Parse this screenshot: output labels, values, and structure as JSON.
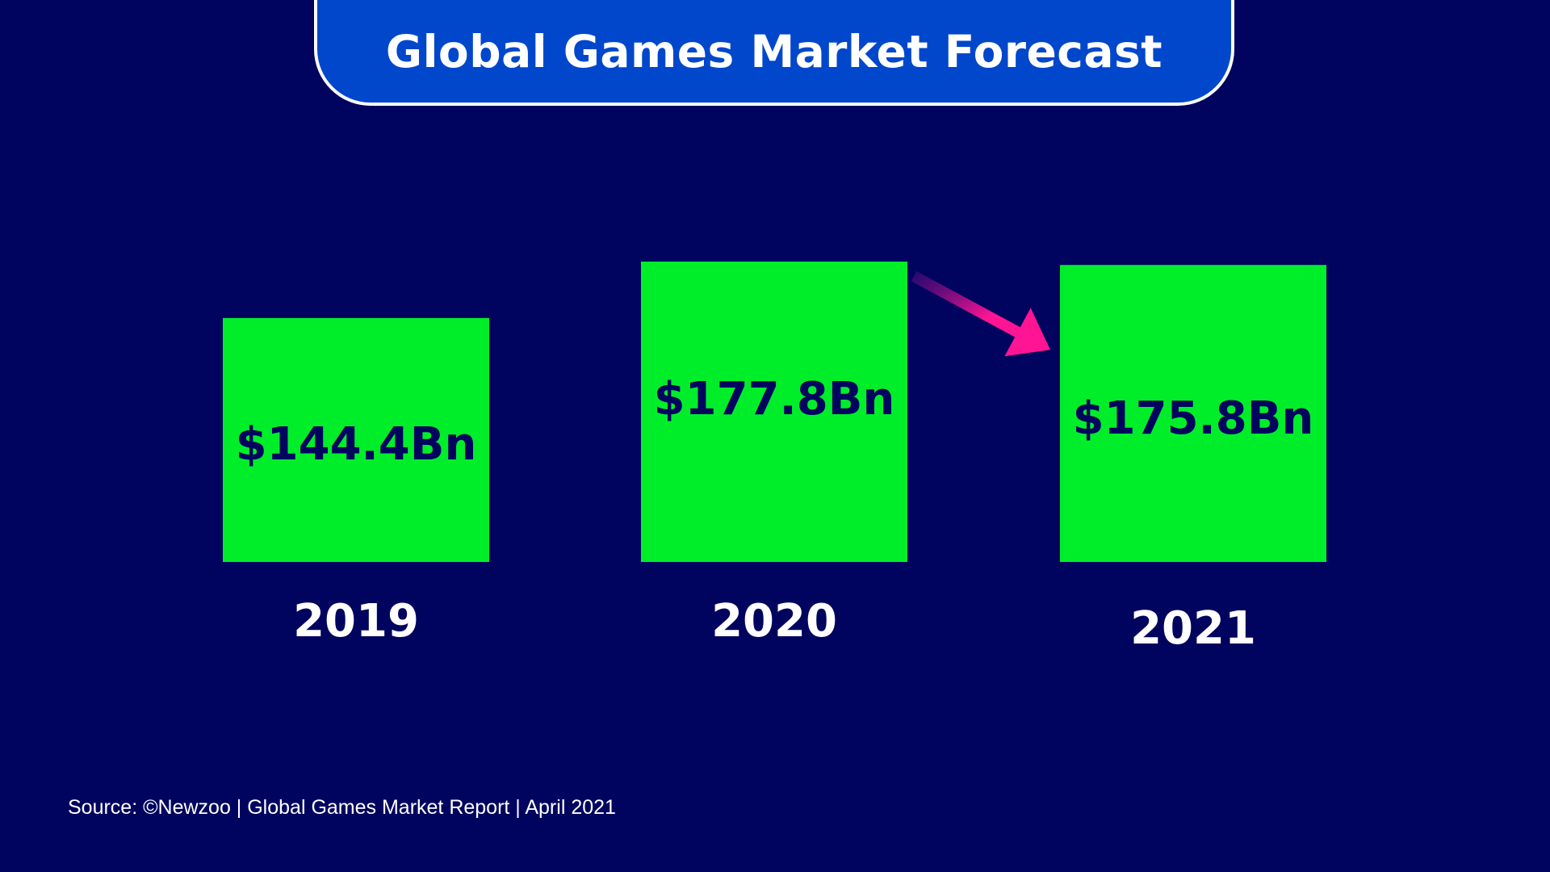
{
  "title": "Global Games Market Forecast",
  "source": "Source: ©Newzoo | Global Games Market Report | April 2021",
  "colors": {
    "background": "#00045e",
    "banner": "#0047cc",
    "bar": "#00ee2a",
    "bar_label": "#00045e",
    "axis_label": "#ffffff",
    "arrow": "#ff1493"
  },
  "arrow_icon": "trend-arrow-down-right",
  "chart_data": {
    "type": "bar",
    "categories": [
      "2019",
      "2020",
      "2021"
    ],
    "values": [
      144.4,
      177.8,
      175.8
    ],
    "data_labels": [
      "$144.4Bn",
      "$177.8Bn",
      "$175.8Bn"
    ],
    "unit": "Bn USD",
    "grid": false,
    "legend": "none"
  }
}
